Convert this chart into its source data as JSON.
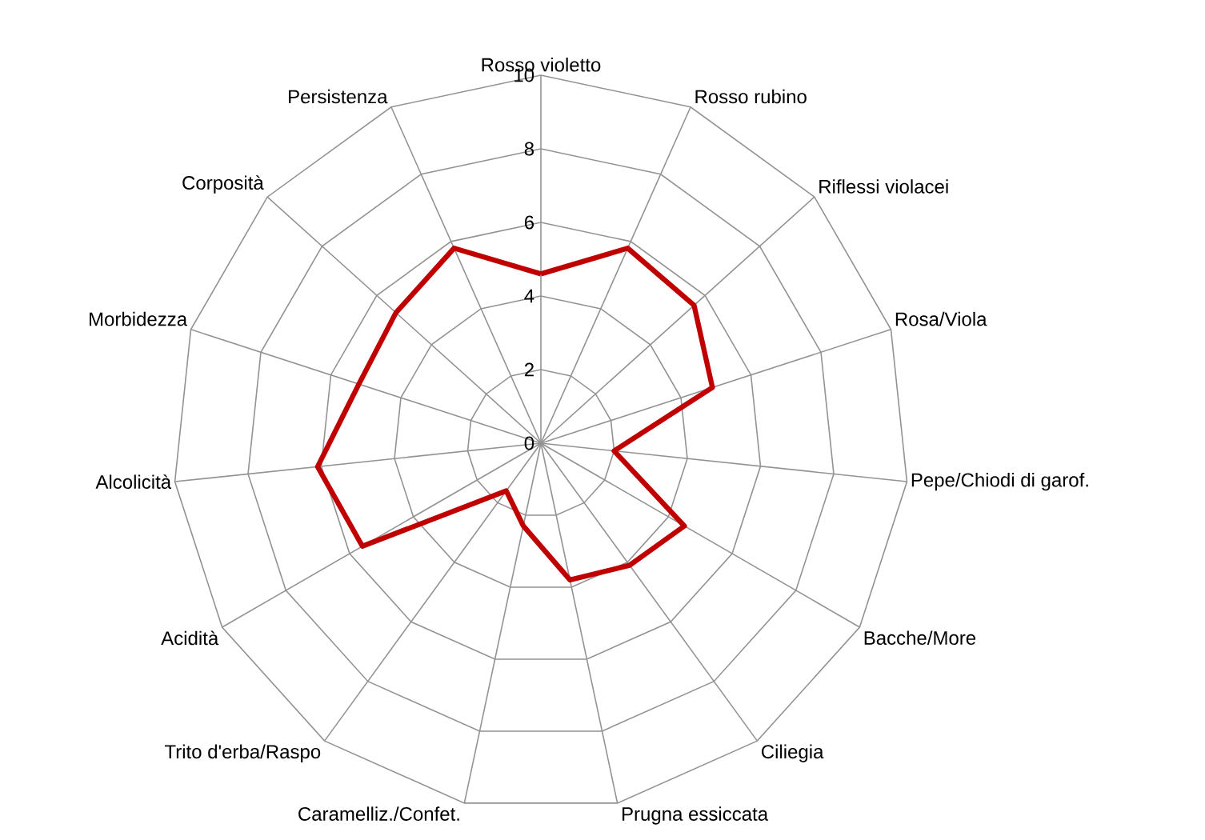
{
  "chart_data": {
    "type": "radar",
    "categories": [
      "Rosso violetto",
      "Rosso rubino",
      "Riflessi violacei",
      "Rosa/Viola",
      "Pepe/Chiodi di garof.",
      "Bacche/More",
      "Ciliegia",
      "Prugna essiccata",
      "Caramelliz./Confet.",
      "Trito d'erba/Raspo",
      "Acidità",
      "Alcolicità",
      "Morbidezza",
      "Corposità",
      "Persistenza"
    ],
    "series": [
      {
        "color": "#c00000",
        "values": [
          4.6,
          5.8,
          5.6,
          4.9,
          2.0,
          4.5,
          4.1,
          3.8,
          2.3,
          1.6,
          5.6,
          6.1,
          5.2,
          5.3,
          5.8
        ]
      }
    ],
    "ylim": [
      0,
      10
    ],
    "yticks": [
      0,
      2,
      4,
      6,
      8,
      10
    ],
    "grid": true
  }
}
